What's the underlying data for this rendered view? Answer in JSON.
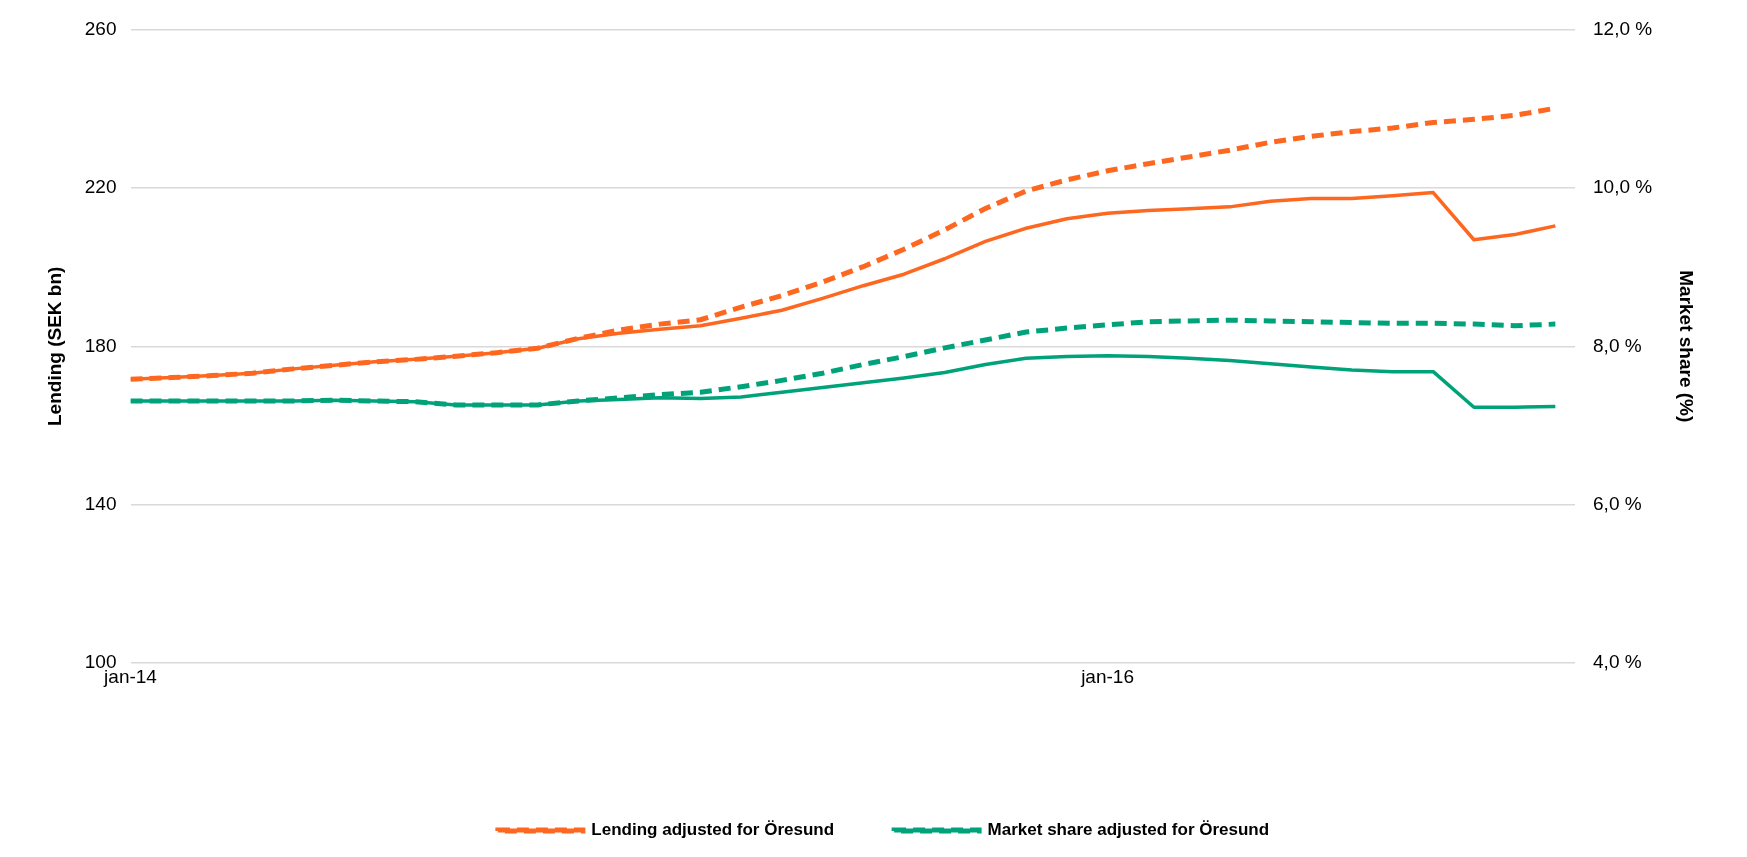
{
  "chart_data": {
    "type": "line",
    "ylabel": "Lending (SEK bn)",
    "y2label": "Market share (%)",
    "x": [
      "2014-01",
      "2014-02",
      "2014-03",
      "2014-04",
      "2014-05",
      "2014-06",
      "2014-07",
      "2014-08",
      "2014-09",
      "2014-10",
      "2014-11",
      "2014-12",
      "2015-01",
      "2015-02",
      "2015-03",
      "2015-04",
      "2015-05",
      "2015-06",
      "2015-07",
      "2015-08",
      "2015-09",
      "2015-10",
      "2015-11",
      "2015-12",
      "2016-01",
      "2016-02",
      "2016-03",
      "2016-04",
      "2016-05",
      "2016-06",
      "2016-07",
      "2016-08",
      "2016-09",
      "2016-10",
      "2016-11",
      "2016-12"
    ],
    "xlim": [
      "2014-01",
      "2016-12-16"
    ],
    "xticks": [
      {
        "value": "2014-01",
        "label": "jan-14"
      },
      {
        "value": "2016-01",
        "label": "jan-16"
      }
    ],
    "ylim": [
      100,
      260
    ],
    "yticks": [
      100,
      140,
      180,
      220,
      260
    ],
    "y2lim": [
      4,
      12
    ],
    "y2ticks": [
      {
        "value": 4,
        "label": "4,0 %"
      },
      {
        "value": 6,
        "label": "6,0 %"
      },
      {
        "value": 8,
        "label": "8,0 %"
      },
      {
        "value": 10,
        "label": "10,0 %"
      },
      {
        "value": 12,
        "label": "12,0 %"
      }
    ],
    "grid": "y",
    "legend": "bottom",
    "marker": "none",
    "series": [
      {
        "color": "#fe6720",
        "line_style": "solid",
        "values": [
          171.7,
          172.1,
          172.6,
          173.2,
          174.3,
          175.2,
          176.1,
          176.7,
          177.5,
          178.4,
          179.5,
          181.9,
          183.3,
          184.3,
          185.2,
          187.1,
          189.1,
          192.1,
          195.3,
          198.2,
          202.1,
          206.5,
          209.8,
          212.2,
          213.6,
          214.3,
          214.7,
          215.2,
          216.6,
          217.3,
          217.3,
          218.0,
          218.8,
          206.9,
          208.2,
          210.4
        ]
      },
      {
        "name": "Lending adjusted for Öresund",
        "color": "#fe6720",
        "line_style": "dashed",
        "values": [
          171.7,
          172.1,
          172.6,
          173.2,
          174.3,
          175.2,
          176.1,
          176.7,
          177.5,
          178.4,
          179.5,
          182.0,
          184.1,
          185.6,
          186.7,
          189.9,
          192.8,
          196.2,
          200.1,
          204.5,
          209.4,
          214.8,
          219.2,
          222.0,
          224.3,
          226.1,
          227.8,
          229.5,
          231.5,
          233.0,
          234.2,
          235.1,
          236.5,
          237.3,
          238.3,
          240.1
        ]
      },
      {
        "color": "#00a27a",
        "line_style": "solid",
        "axis": "y2",
        "values": [
          7.31,
          7.31,
          7.31,
          7.31,
          7.31,
          7.32,
          7.31,
          7.3,
          7.26,
          7.26,
          7.26,
          7.31,
          7.33,
          7.35,
          7.34,
          7.36,
          7.42,
          7.48,
          7.54,
          7.6,
          7.67,
          7.77,
          7.85,
          7.87,
          7.88,
          7.87,
          7.85,
          7.82,
          7.78,
          7.74,
          7.7,
          7.68,
          7.68,
          7.23,
          7.23,
          7.24
        ]
      },
      {
        "name": "Market share adjusted for Öresund",
        "color": "#00a27a",
        "line_style": "dashed",
        "axis": "y2",
        "values": [
          7.31,
          7.31,
          7.31,
          7.31,
          7.31,
          7.32,
          7.31,
          7.3,
          7.26,
          7.26,
          7.26,
          7.31,
          7.35,
          7.39,
          7.42,
          7.49,
          7.57,
          7.66,
          7.77,
          7.87,
          7.98,
          8.08,
          8.18,
          8.23,
          8.27,
          8.31,
          8.32,
          8.33,
          8.32,
          8.31,
          8.3,
          8.29,
          8.29,
          8.28,
          8.26,
          8.28
        ]
      }
    ]
  }
}
